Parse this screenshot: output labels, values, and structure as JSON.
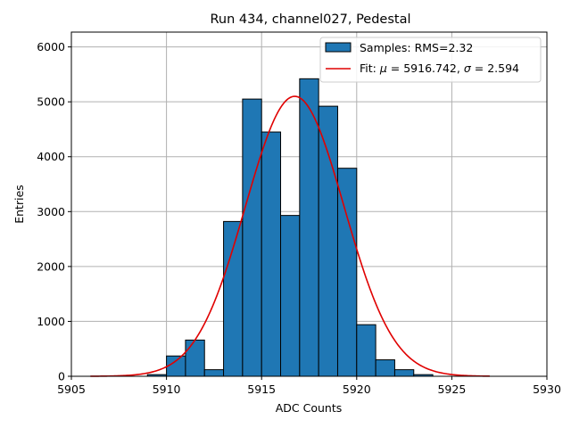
{
  "chart_data": {
    "type": "bar",
    "title": "Run 434, channel027, Pedestal",
    "xlabel": "ADC Counts",
    "ylabel": "Entries",
    "xlim": [
      5905,
      5930
    ],
    "ylim": [
      0,
      6270
    ],
    "xticks": [
      5905,
      5910,
      5915,
      5920,
      5925,
      5930
    ],
    "yticks": [
      0,
      1000,
      2000,
      3000,
      4000,
      5000,
      6000
    ],
    "grid": true,
    "legend_position": "top-right",
    "bar_color": "#1f77b4",
    "fit_color": "#e00000",
    "histogram": {
      "name": "Samples: RMS=2.32",
      "bin_width": 1,
      "bin_starts": [
        5909,
        5910,
        5911,
        5912,
        5913,
        5914,
        5915,
        5916,
        5917,
        5918,
        5919,
        5920,
        5921,
        5922,
        5923
      ],
      "values": [
        30,
        370,
        660,
        120,
        2820,
        5050,
        4450,
        2930,
        5420,
        4920,
        3790,
        940,
        300,
        120,
        30
      ]
    },
    "fit": {
      "name_prefix": "Fit: ",
      "mu_label": "μ",
      "sigma_label": "σ",
      "mu": 5916.742,
      "sigma": 2.594,
      "peak": 5100,
      "x_range": [
        5906,
        5927
      ]
    }
  }
}
